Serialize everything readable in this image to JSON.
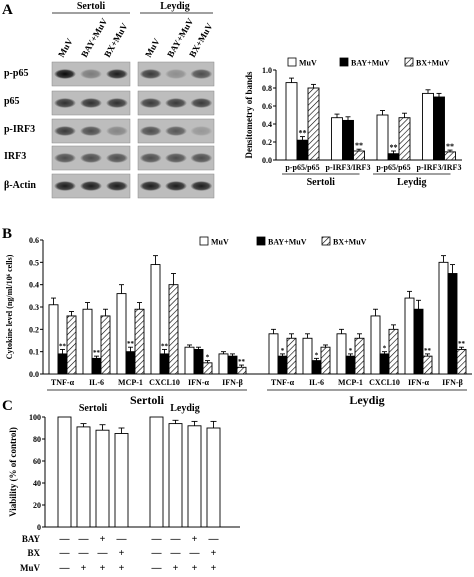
{
  "panels": {
    "a": "A",
    "b": "B",
    "c": "C"
  },
  "blot": {
    "group_labels": [
      "Sertoli",
      "Leydig"
    ],
    "lane_labels": [
      "MuV",
      "BAY+MuV",
      "BX+MuV"
    ],
    "row_labels": [
      "p-p65",
      "p65",
      "p-IRF3",
      "IRF3",
      "β-Actin"
    ],
    "band_intensity": {
      "p-p65": [
        [
          0.95,
          0.35,
          0.85
        ],
        [
          0.7,
          0.25,
          0.6
        ]
      ],
      "p65": [
        [
          0.75,
          0.75,
          0.75
        ],
        [
          0.7,
          0.7,
          0.7
        ]
      ],
      "p-IRF3": [
        [
          0.7,
          0.6,
          0.3
        ],
        [
          0.6,
          0.55,
          0.2
        ]
      ],
      "IRF3": [
        [
          0.6,
          0.6,
          0.6
        ],
        [
          0.6,
          0.6,
          0.6
        ]
      ],
      "β-Actin": [
        [
          0.85,
          0.85,
          0.85
        ],
        [
          0.85,
          0.85,
          0.85
        ]
      ]
    }
  },
  "chart_data": [
    {
      "type": "bar",
      "panel": "A",
      "ylabel": "Densitometry of bands",
      "ylim": [
        0,
        1.0
      ],
      "yticks": [
        "0.0",
        "0.2",
        "0.4",
        "0.6",
        "0.8",
        "1.0"
      ],
      "categories": [
        "p-p65/p65",
        "p-IRF3/IRF3",
        "p-p65/p65",
        "p-IRF3/IRF3"
      ],
      "groups": [
        {
          "label": "Sertoli",
          "span": [
            0,
            1
          ]
        },
        {
          "label": "Leydig",
          "span": [
            2,
            3
          ]
        }
      ],
      "series": [
        {
          "name": "MuV",
          "values": [
            0.86,
            0.47,
            0.5,
            0.74
          ],
          "errors": [
            0.05,
            0.04,
            0.05,
            0.04
          ]
        },
        {
          "name": "BAY+MuV",
          "values": [
            0.22,
            0.44,
            0.07,
            0.7
          ],
          "errors": [
            0.04,
            0.04,
            0.03,
            0.04
          ]
        },
        {
          "name": "BX+MuV",
          "values": [
            0.8,
            0.1,
            0.47,
            0.09
          ],
          "errors": [
            0.04,
            0.02,
            0.05,
            0.02
          ]
        }
      ],
      "annotations": [
        "",
        "**",
        "",
        "",
        "",
        "**",
        "",
        "**",
        "",
        "",
        "",
        "**"
      ],
      "legend": "top"
    },
    {
      "type": "bar",
      "panel": "B",
      "ylabel": "Cytokine level (ng/ml/10⁶ cells)",
      "ylim": [
        0,
        0.6
      ],
      "yticks": [
        "0.0",
        "0.1",
        "0.2",
        "0.3",
        "0.4",
        "0.5",
        "0.6"
      ],
      "categories": [
        "TNF-α",
        "IL-6",
        "MCP-1",
        "CXCL10",
        "IFN-α",
        "IFN-β",
        "TNF-α",
        "IL-6",
        "MCP-1",
        "CXCL10",
        "IFN-α",
        "IFN-β"
      ],
      "groups": [
        {
          "label": "Sertoli",
          "span": [
            0,
            5
          ]
        },
        {
          "label": "Leydig",
          "span": [
            6,
            11
          ]
        }
      ],
      "series": [
        {
          "name": "MuV",
          "values": [
            0.31,
            0.29,
            0.36,
            0.49,
            0.12,
            0.09,
            0.18,
            0.16,
            0.18,
            0.26,
            0.34,
            0.5
          ],
          "errors": [
            0.03,
            0.03,
            0.04,
            0.04,
            0.01,
            0.01,
            0.02,
            0.02,
            0.02,
            0.03,
            0.03,
            0.03
          ]
        },
        {
          "name": "BAY+MuV",
          "values": [
            0.09,
            0.07,
            0.1,
            0.09,
            0.11,
            0.08,
            0.08,
            0.06,
            0.08,
            0.09,
            0.29,
            0.45
          ],
          "errors": [
            0.02,
            0.01,
            0.02,
            0.02,
            0.01,
            0.01,
            0.01,
            0.01,
            0.01,
            0.01,
            0.04,
            0.04
          ]
        },
        {
          "name": "BX+MuV",
          "values": [
            0.26,
            0.26,
            0.29,
            0.4,
            0.05,
            0.03,
            0.16,
            0.12,
            0.16,
            0.2,
            0.08,
            0.11
          ],
          "errors": [
            0.02,
            0.03,
            0.03,
            0.05,
            0.01,
            0.01,
            0.02,
            0.01,
            0.02,
            0.02,
            0.01,
            0.01
          ]
        }
      ],
      "annotations": [
        [
          "",
          "**",
          ""
        ],
        [
          "",
          "**",
          ""
        ],
        [
          "",
          "**",
          ""
        ],
        [
          "",
          "**",
          ""
        ],
        [
          "",
          "",
          "*"
        ],
        [
          "",
          "",
          "**"
        ],
        [
          "",
          "*",
          ""
        ],
        [
          "",
          "*",
          ""
        ],
        [
          "",
          "*",
          ""
        ],
        [
          "",
          "*",
          ""
        ],
        [
          "",
          "",
          "**"
        ],
        [
          "",
          "",
          "**"
        ]
      ],
      "legend": "top"
    },
    {
      "type": "bar",
      "panel": "C",
      "ylabel": "Viability (% of control)",
      "ylim": [
        0,
        100
      ],
      "yticks": [
        "0",
        "20",
        "40",
        "60",
        "80",
        "100"
      ],
      "groups": [
        {
          "label": "Sertoli",
          "span": [
            0,
            3
          ]
        },
        {
          "label": "Leydig",
          "span": [
            4,
            7
          ]
        }
      ],
      "values": [
        100,
        91,
        88,
        85,
        100,
        94,
        92,
        90
      ],
      "errors": [
        0,
        3,
        5,
        5,
        0,
        3,
        4,
        6
      ],
      "treatment_rows": [
        {
          "label": "BAY",
          "marks": [
            "—",
            "—",
            "+",
            "—",
            "—",
            "—",
            "+",
            "—"
          ]
        },
        {
          "label": "BX",
          "marks": [
            "—",
            "—",
            "—",
            "+",
            "—",
            "—",
            "—",
            "+"
          ]
        },
        {
          "label": "MuV",
          "marks": [
            "—",
            "+",
            "+",
            "+",
            "—",
            "+",
            "+",
            "+"
          ]
        }
      ]
    }
  ]
}
